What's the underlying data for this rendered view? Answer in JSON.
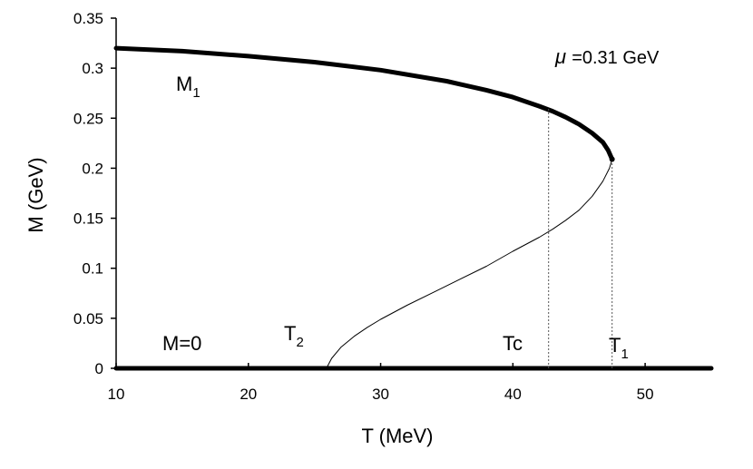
{
  "chart_data": {
    "type": "line",
    "xlabel": "T (MeV)",
    "ylabel": "M (GeV)",
    "xlim": [
      10,
      55
    ],
    "ylim": [
      0,
      0.35
    ],
    "grid": false,
    "x_ticks": [
      "10",
      "20",
      "30",
      "40",
      "50"
    ],
    "y_ticks": [
      "0",
      "0.05",
      "0.1",
      "0.15",
      "0.2",
      "0.25",
      "0.3",
      "0.35"
    ],
    "annotations": {
      "mu_symbol": "μ",
      "mu_text": "=0.31 GeV",
      "m1_main": "M",
      "m1_sub": "1",
      "m0": "M=0",
      "t2_main": "T",
      "t2_sub": "2",
      "tc": "Tc",
      "t1_main": "T",
      "t1_sub": "1"
    },
    "series": [
      {
        "style": "thick-solid",
        "x": [
          10,
          15,
          20,
          25,
          30,
          35,
          38,
          40,
          42,
          43,
          44,
          45,
          46,
          46.8,
          47.2,
          47.5
        ],
        "y": [
          0.32,
          0.317,
          0.312,
          0.306,
          0.298,
          0.287,
          0.278,
          0.271,
          0.262,
          0.257,
          0.251,
          0.244,
          0.235,
          0.226,
          0.218,
          0.209
        ]
      },
      {
        "style": "thin-solid",
        "x": [
          25.9,
          26.3,
          27,
          28,
          29,
          30,
          32,
          34,
          36,
          38,
          40,
          42,
          43,
          44,
          45,
          46,
          46.8,
          47.3,
          47.5
        ],
        "y": [
          0.0,
          0.01,
          0.021,
          0.032,
          0.041,
          0.049,
          0.063,
          0.076,
          0.089,
          0.102,
          0.117,
          0.131,
          0.139,
          0.148,
          0.158,
          0.172,
          0.187,
          0.2,
          0.209
        ]
      },
      {
        "style": "thick-solid",
        "x": [
          10,
          55
        ],
        "y": [
          0,
          0
        ]
      },
      {
        "style": "dotted",
        "x": [
          42.7,
          42.7
        ],
        "y": [
          0,
          0.26
        ]
      },
      {
        "style": "dotted",
        "x": [
          47.5,
          47.5
        ],
        "y": [
          0,
          0.209
        ]
      }
    ],
    "markers": [
      {
        "x": 47.5,
        "y": 0.209
      }
    ]
  }
}
